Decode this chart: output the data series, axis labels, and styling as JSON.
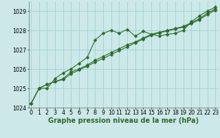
{
  "xlabel": "Graphe pression niveau de la mer (hPa)",
  "x": [
    0,
    1,
    2,
    3,
    4,
    5,
    6,
    7,
    8,
    9,
    10,
    11,
    12,
    13,
    14,
    15,
    16,
    17,
    18,
    19,
    20,
    21,
    22,
    23
  ],
  "series": [
    [
      1024.2,
      1025.0,
      1025.0,
      1025.5,
      1025.8,
      1026.0,
      1026.3,
      1026.6,
      1027.5,
      1027.85,
      1028.0,
      1027.85,
      1028.05,
      1027.7,
      1027.95,
      1027.8,
      1027.7,
      1027.8,
      1027.85,
      1028.0,
      1028.45,
      1028.75,
      1029.0,
      1029.2
    ],
    [
      1024.2,
      1025.0,
      1025.2,
      1025.35,
      1025.5,
      1025.85,
      1026.0,
      1026.2,
      1026.45,
      1026.65,
      1026.85,
      1027.05,
      1027.25,
      1027.4,
      1027.6,
      1027.8,
      1027.9,
      1028.0,
      1028.1,
      1028.2,
      1028.4,
      1028.6,
      1028.9,
      1029.1
    ],
    [
      1024.2,
      1025.0,
      1025.2,
      1025.35,
      1025.45,
      1025.75,
      1025.95,
      1026.15,
      1026.35,
      1026.55,
      1026.75,
      1026.95,
      1027.15,
      1027.35,
      1027.55,
      1027.75,
      1027.87,
      1027.97,
      1028.07,
      1028.17,
      1028.35,
      1028.55,
      1028.82,
      1029.05
    ]
  ],
  "line_color": "#2d6a2d",
  "marker_color": "#2d6a2d",
  "bg_color": "#cce8e8",
  "grid_color": "#99cccc",
  "ylim": [
    1024.0,
    1029.5
  ],
  "yticks": [
    1024,
    1025,
    1026,
    1027,
    1028,
    1029
  ],
  "xlim": [
    -0.3,
    23.3
  ],
  "xticks": [
    0,
    1,
    2,
    3,
    4,
    5,
    6,
    7,
    8,
    9,
    10,
    11,
    12,
    13,
    14,
    15,
    16,
    17,
    18,
    19,
    20,
    21,
    22,
    23
  ],
  "tick_fontsize": 5.8,
  "label_fontsize": 7.0,
  "marker_size": 2.5,
  "line_width": 0.8
}
